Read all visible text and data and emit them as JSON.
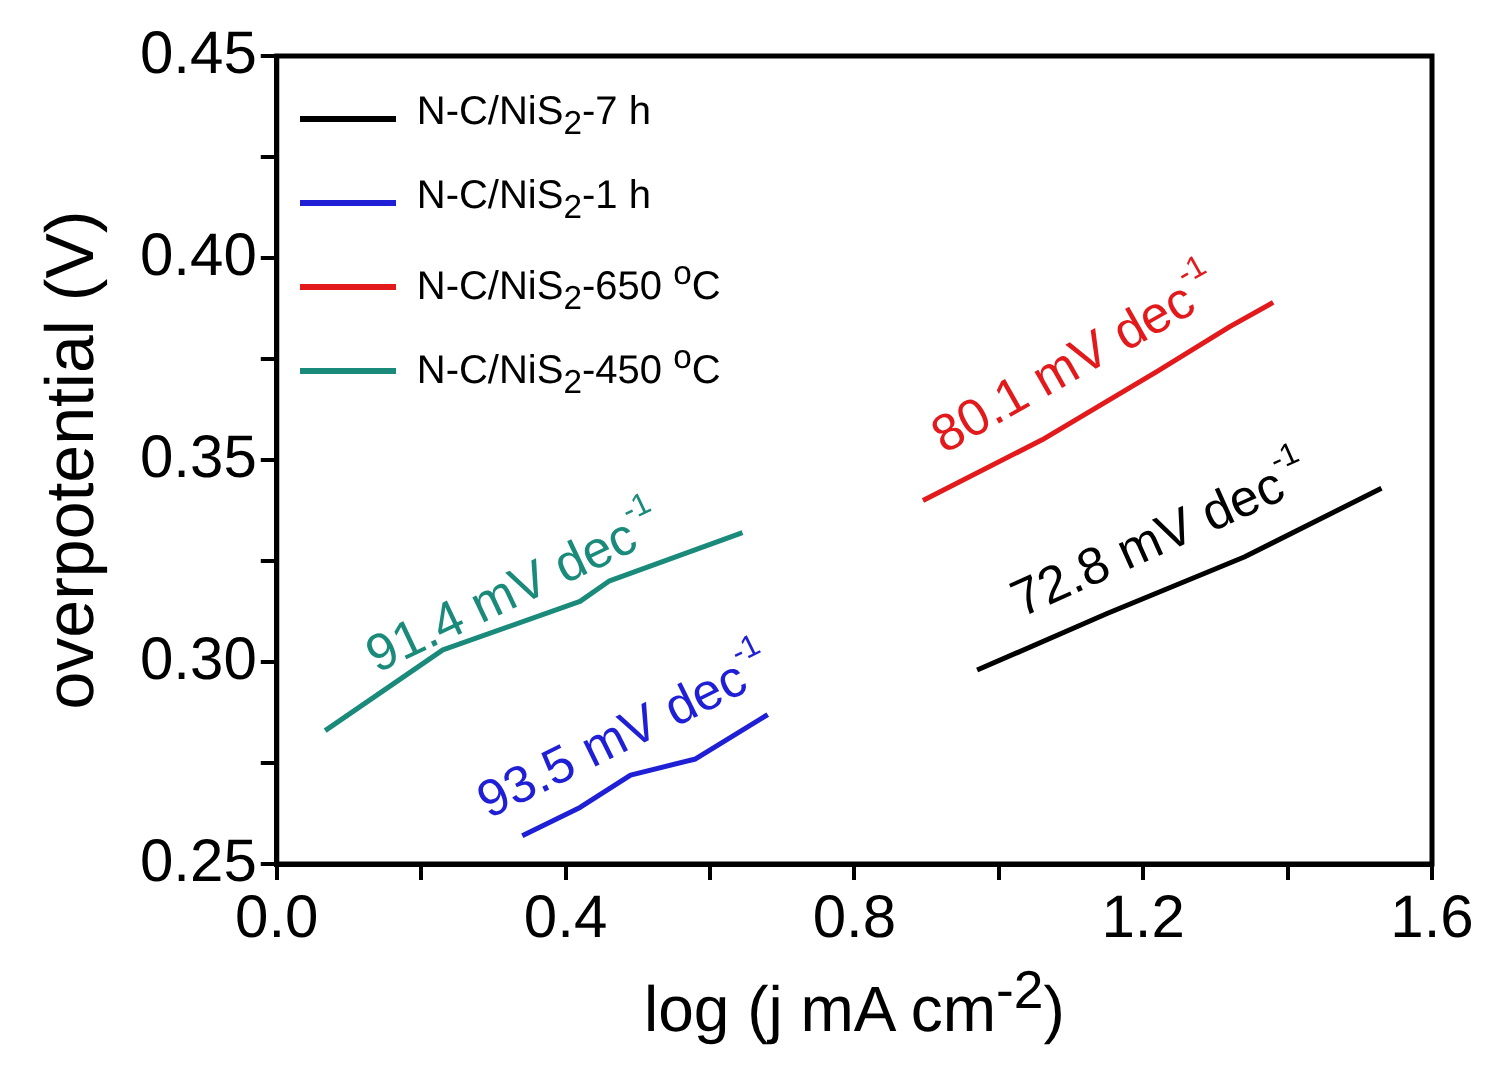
{
  "chart_data": {
    "type": "line",
    "xlabel": "log (j mA cm$^{-2}$)",
    "ylabel": "overpotential (V)",
    "xlim": [
      0,
      1.6
    ],
    "ylim": [
      0.25,
      0.45
    ],
    "xticks": [
      {
        "value": 0,
        "label": "0.0"
      },
      {
        "value": 0.2,
        "label": null
      },
      {
        "value": 0.4,
        "label": "0.4"
      },
      {
        "value": 0.6,
        "label": null
      },
      {
        "value": 0.8,
        "label": "0.8"
      },
      {
        "value": 1.0,
        "label": null
      },
      {
        "value": 1.2,
        "label": "1.2"
      },
      {
        "value": 1.4,
        "label": null
      },
      {
        "value": 1.6,
        "label": "1.6"
      }
    ],
    "yticks": [
      0.25,
      {
        "value": 0.275,
        "label": null
      },
      {
        "value": 0.3,
        "label": "0.30"
      },
      {
        "value": 0.325,
        "label": null
      },
      0.35,
      {
        "value": 0.375,
        "label": null
      },
      {
        "value": 0.4,
        "label": "0.40"
      },
      {
        "value": 0.425,
        "label": null
      },
      0.45
    ],
    "grid": false,
    "legend": "top left",
    "marker": "none",
    "line_style": "solid",
    "series": [
      {
        "name": "N-C/NiS$_{2}$-7 h",
        "color": "#000000",
        "x": [
          0.97,
          1.15,
          1.34,
          1.53
        ],
        "values": [
          0.298,
          0.312,
          0.326,
          0.343
        ]
      },
      {
        "name": "N-C/NiS$_{2}$-1 h",
        "color": "#1f1fd6",
        "x": [
          0.34,
          0.42,
          0.49,
          0.58,
          0.68
        ],
        "values": [
          0.257,
          0.264,
          0.272,
          0.276,
          0.287
        ]
      },
      {
        "name": "N-C/NiS$_{2}$-650 $^{o}$C",
        "color": "#e31a1c",
        "x": [
          0.895,
          1.06,
          1.22,
          1.32,
          1.38
        ],
        "values": [
          0.34,
          0.355,
          0.372,
          0.383,
          0.389
        ]
      },
      {
        "name": "N-C/NiS$_{2}$-450 $^{o}$C",
        "color": "#1a8a7a",
        "x": [
          0.067,
          0.23,
          0.42,
          0.46,
          0.645
        ],
        "values": [
          0.283,
          0.303,
          0.315,
          0.32,
          0.332
        ]
      }
    ],
    "annotations": [
      "72.8 mV dec$^{-1}$",
      "93.5 mV dec$^{-1}$",
      "80.1 mV dec$^{-1}$",
      "91.4 mV dec$^{-1}$"
    ]
  }
}
